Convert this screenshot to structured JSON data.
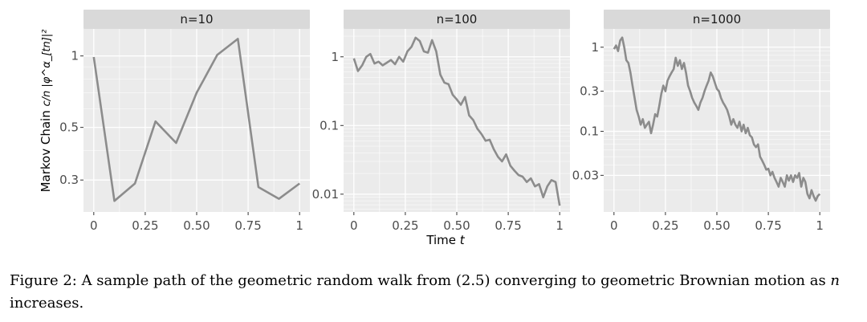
{
  "figure_caption": {
    "label": "Figure 2:",
    "text_part1": " A sample path of the geometric random walk from (2.5) converging to geometric Brownian motion as ",
    "text_var": "n",
    "text_part2": " increases."
  },
  "colors": {
    "panel_bg": "#ebebeb",
    "grid": "#ffffff",
    "strip_bg": "#d9d9d9",
    "line": "#8c8c8c"
  },
  "chart_data": [
    {
      "type": "line",
      "strip_label": "n=10",
      "ylabel_text": "Markov Chain ",
      "ylabel_math": "c/n |φ^α_[tn]|²",
      "xlabel": "",
      "y_scale": "log",
      "xlim": [
        -0.05,
        1.05
      ],
      "ylim": [
        0.22,
        1.3
      ],
      "x_ticks": [
        0,
        0.25,
        0.5,
        0.75,
        1
      ],
      "x_tick_labels": [
        "0",
        "0.25",
        "0.50",
        "0.75",
        "1"
      ],
      "y_ticks": [
        0.3,
        0.5,
        1
      ],
      "y_tick_labels": [
        "0.3",
        "0.5",
        "1"
      ],
      "grid": true,
      "x": [
        0,
        0.1,
        0.2,
        0.3,
        0.4,
        0.5,
        0.6,
        0.7,
        0.8,
        0.9,
        1.0
      ],
      "y": [
        0.99,
        0.245,
        0.29,
        0.53,
        0.43,
        0.7,
        1.01,
        1.18,
        0.28,
        0.25,
        0.29
      ]
    },
    {
      "type": "line",
      "strip_label": "n=100",
      "xlabel_text": "Time ",
      "xlabel_var": "t",
      "y_scale": "log",
      "xlim": [
        -0.05,
        1.05
      ],
      "ylim": [
        0.0055,
        2.55
      ],
      "x_ticks": [
        0,
        0.25,
        0.5,
        0.75,
        1
      ],
      "x_tick_labels": [
        "0",
        "0.25",
        "0.50",
        "0.75",
        "1"
      ],
      "y_ticks": [
        0.01,
        0.1,
        1
      ],
      "y_tick_labels": [
        "0.01",
        "0.1",
        "1"
      ],
      "grid": true,
      "x": [
        0,
        0.02,
        0.04,
        0.06,
        0.08,
        0.1,
        0.12,
        0.14,
        0.16,
        0.18,
        0.2,
        0.22,
        0.24,
        0.26,
        0.28,
        0.3,
        0.32,
        0.34,
        0.36,
        0.38,
        0.4,
        0.42,
        0.44,
        0.46,
        0.48,
        0.5,
        0.52,
        0.54,
        0.56,
        0.58,
        0.6,
        0.62,
        0.64,
        0.66,
        0.68,
        0.7,
        0.72,
        0.74,
        0.76,
        0.78,
        0.8,
        0.82,
        0.84,
        0.86,
        0.88,
        0.9,
        0.92,
        0.94,
        0.96,
        0.98,
        1.0
      ],
      "y": [
        0.95,
        0.62,
        0.75,
        1.0,
        1.1,
        0.8,
        0.85,
        0.75,
        0.82,
        0.9,
        0.78,
        1.0,
        0.85,
        1.2,
        1.4,
        1.9,
        1.7,
        1.2,
        1.15,
        1.75,
        1.2,
        0.55,
        0.42,
        0.4,
        0.28,
        0.24,
        0.2,
        0.26,
        0.14,
        0.12,
        0.09,
        0.075,
        0.06,
        0.062,
        0.045,
        0.035,
        0.03,
        0.038,
        0.026,
        0.022,
        0.019,
        0.018,
        0.015,
        0.017,
        0.013,
        0.014,
        0.009,
        0.013,
        0.016,
        0.015,
        0.0068
      ]
    },
    {
      "type": "line",
      "strip_label": "n=1000",
      "xlabel": "",
      "y_scale": "log",
      "xlim": [
        -0.05,
        1.05
      ],
      "ylim": [
        0.011,
        1.65
      ],
      "x_ticks": [
        0,
        0.25,
        0.5,
        0.75,
        1
      ],
      "x_tick_labels": [
        "0",
        "0.25",
        "0.50",
        "0.75",
        "1"
      ],
      "y_ticks": [
        0.03,
        0.1,
        0.3,
        1
      ],
      "y_tick_labels": [
        "0.03",
        "0.1",
        "0.3",
        "1"
      ],
      "grid": true,
      "x": [
        0,
        0.01,
        0.02,
        0.03,
        0.04,
        0.05,
        0.06,
        0.07,
        0.08,
        0.09,
        0.1,
        0.11,
        0.12,
        0.13,
        0.14,
        0.15,
        0.16,
        0.17,
        0.18,
        0.19,
        0.2,
        0.21,
        0.22,
        0.23,
        0.24,
        0.25,
        0.26,
        0.27,
        0.28,
        0.29,
        0.3,
        0.31,
        0.32,
        0.33,
        0.34,
        0.35,
        0.36,
        0.37,
        0.38,
        0.39,
        0.4,
        0.41,
        0.42,
        0.43,
        0.44,
        0.45,
        0.46,
        0.47,
        0.48,
        0.49,
        0.5,
        0.51,
        0.52,
        0.53,
        0.54,
        0.55,
        0.56,
        0.57,
        0.58,
        0.59,
        0.6,
        0.61,
        0.62,
        0.63,
        0.64,
        0.65,
        0.66,
        0.67,
        0.68,
        0.69,
        0.7,
        0.71,
        0.72,
        0.73,
        0.74,
        0.75,
        0.76,
        0.77,
        0.78,
        0.79,
        0.8,
        0.81,
        0.82,
        0.83,
        0.84,
        0.85,
        0.86,
        0.87,
        0.88,
        0.89,
        0.9,
        0.91,
        0.92,
        0.93,
        0.94,
        0.95,
        0.96,
        0.97,
        0.98,
        0.99,
        1.0
      ],
      "y": [
        0.95,
        1.05,
        0.9,
        1.2,
        1.3,
        1.0,
        0.7,
        0.65,
        0.5,
        0.35,
        0.25,
        0.18,
        0.15,
        0.12,
        0.14,
        0.11,
        0.12,
        0.13,
        0.095,
        0.12,
        0.16,
        0.15,
        0.2,
        0.28,
        0.35,
        0.3,
        0.4,
        0.45,
        0.5,
        0.55,
        0.75,
        0.6,
        0.7,
        0.55,
        0.65,
        0.5,
        0.35,
        0.3,
        0.25,
        0.22,
        0.2,
        0.18,
        0.22,
        0.25,
        0.3,
        0.35,
        0.4,
        0.5,
        0.45,
        0.38,
        0.32,
        0.3,
        0.25,
        0.22,
        0.2,
        0.18,
        0.15,
        0.12,
        0.14,
        0.12,
        0.11,
        0.13,
        0.1,
        0.12,
        0.095,
        0.11,
        0.09,
        0.085,
        0.07,
        0.065,
        0.07,
        0.05,
        0.045,
        0.04,
        0.035,
        0.036,
        0.03,
        0.033,
        0.028,
        0.025,
        0.022,
        0.028,
        0.025,
        0.022,
        0.03,
        0.026,
        0.03,
        0.025,
        0.03,
        0.028,
        0.032,
        0.022,
        0.028,
        0.025,
        0.018,
        0.016,
        0.02,
        0.017,
        0.015,
        0.017,
        0.018
      ]
    }
  ]
}
